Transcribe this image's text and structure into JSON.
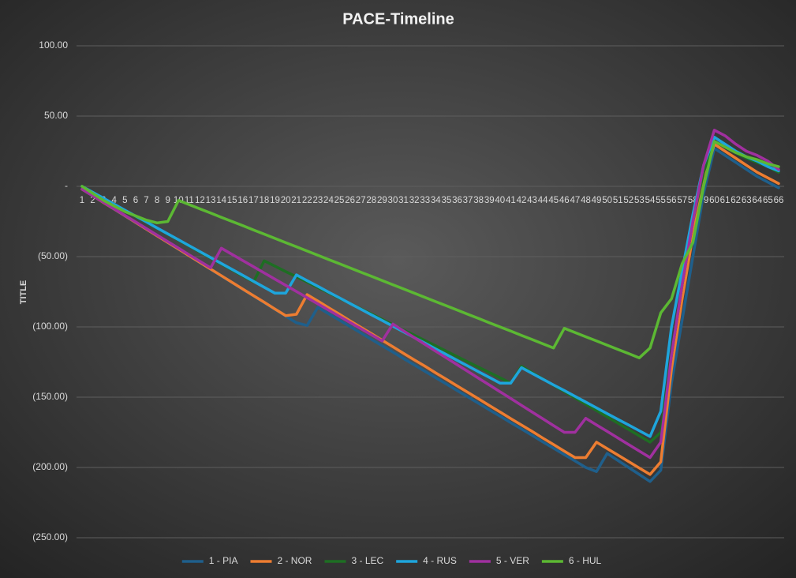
{
  "chart_data": {
    "type": "line",
    "title": "PACE-Timeline",
    "y_label": "TITLE",
    "categories": [
      "1",
      "2",
      "3",
      "4",
      "5",
      "6",
      "7",
      "8",
      "9",
      "10",
      "11",
      "12",
      "13",
      "14",
      "15",
      "16",
      "17",
      "18",
      "19",
      "20",
      "21",
      "22",
      "23",
      "24",
      "25",
      "26",
      "27",
      "28",
      "29",
      "30",
      "31",
      "32",
      "33",
      "34",
      "35",
      "36",
      "37",
      "38",
      "39",
      "40",
      "41",
      "42",
      "43",
      "44",
      "45",
      "46",
      "47",
      "48",
      "49",
      "50",
      "51",
      "52",
      "53",
      "54",
      "55",
      "56",
      "57",
      "58",
      "59",
      "60",
      "61",
      "62",
      "63",
      "64",
      "65",
      "66"
    ],
    "ylim": [
      -250,
      100
    ],
    "yticks": [
      {
        "value": 100,
        "label": "100.00"
      },
      {
        "value": 50,
        "label": "50.00"
      },
      {
        "value": 0,
        "label": "-"
      },
      {
        "value": -50,
        "label": "(50.00)"
      },
      {
        "value": -100,
        "label": "(100.00)"
      },
      {
        "value": -150,
        "label": "(150.00)"
      },
      {
        "value": -200,
        "label": "(200.00)"
      },
      {
        "value": -250,
        "label": "(250.00)"
      }
    ],
    "grid": true,
    "legend": "bottom",
    "series": [
      {
        "name": "1 - PIA",
        "color": "#1f5f8b",
        "values": [
          -2,
          -6.8,
          -11.5,
          -16.3,
          -21,
          -25.8,
          -30.5,
          -35.3,
          -40,
          -44.8,
          -49.5,
          -54.3,
          -59,
          -63.8,
          -68.5,
          -73.3,
          -78,
          -82.8,
          -87.5,
          -92.3,
          -97,
          -99,
          -86,
          -90.6,
          -95.1,
          -99.7,
          -104.2,
          -108.8,
          -113.4,
          -117.9,
          -122.5,
          -127,
          -131.6,
          -136.2,
          -140.7,
          -145.3,
          -149.8,
          -154.4,
          -159,
          -163.5,
          -168.1,
          -172.6,
          -177.2,
          -181.8,
          -186.3,
          -190.9,
          -195.4,
          -200,
          -203,
          -190,
          -195,
          -200,
          -205,
          -210,
          -202,
          -140,
          -95,
          -50,
          -5,
          27,
          22,
          17,
          12,
          7,
          3,
          -1
        ]
      },
      {
        "name": "2 - NOR",
        "color": "#ed7d31",
        "values": [
          -2,
          -6.7,
          -11.5,
          -16.2,
          -20.9,
          -25.7,
          -30.4,
          -35.2,
          -39.9,
          -44.6,
          -49.4,
          -54.1,
          -58.8,
          -63.6,
          -68.3,
          -73.1,
          -77.8,
          -82.5,
          -87.3,
          -92,
          -91,
          -77,
          -81.6,
          -86.3,
          -90.9,
          -95.6,
          -100.2,
          -104.8,
          -109.5,
          -114.1,
          -118.8,
          -123.4,
          -128,
          -132.7,
          -137.3,
          -142,
          -146.6,
          -151.2,
          -155.9,
          -160.5,
          -165.2,
          -169.8,
          -174.4,
          -179.1,
          -183.7,
          -188.4,
          -193,
          -193,
          -182,
          -186.6,
          -191.2,
          -195.8,
          -200.4,
          -205,
          -196,
          -130,
          -80,
          -35,
          5,
          30,
          25,
          20,
          15,
          10,
          6,
          2
        ]
      },
      {
        "name": "3 - LEC",
        "color": "#1e6e23",
        "values": [
          0,
          -4.3,
          -8.5,
          -12.8,
          -17,
          -21.3,
          -25.5,
          -29.8,
          -34,
          -38.3,
          -42.5,
          -46.8,
          -51,
          -55.3,
          -59.5,
          -63.8,
          -68,
          -53,
          -56.8,
          -60.6,
          -64.3,
          -68.1,
          -71.9,
          -75.7,
          -79.5,
          -83.3,
          -87,
          -90.8,
          -94.6,
          -98.4,
          -102.2,
          -105.9,
          -109.7,
          -113.5,
          -117.3,
          -121.1,
          -124.9,
          -128.7,
          -132.4,
          -136.2,
          -140,
          -128,
          -132.5,
          -137,
          -141.5,
          -146,
          -150.5,
          -155,
          -159.5,
          -164,
          -168.5,
          -173,
          -177.5,
          -182,
          -175,
          -120,
          -70,
          -25,
          10,
          32,
          28,
          24,
          20,
          17,
          14,
          10
        ]
      },
      {
        "name": "4 - RUS",
        "color": "#1ea5dc",
        "values": [
          0,
          -4.2,
          -8.4,
          -12.7,
          -16.9,
          -21.1,
          -25.3,
          -29.6,
          -33.8,
          -38,
          -42.2,
          -46.4,
          -50.7,
          -54.9,
          -59.1,
          -63.3,
          -67.6,
          -71.8,
          -76,
          -76,
          -63,
          -67.1,
          -71.1,
          -75.2,
          -79.2,
          -83.3,
          -87.3,
          -91.4,
          -95.4,
          -99.5,
          -103.5,
          -107.6,
          -111.6,
          -115.7,
          -119.7,
          -123.8,
          -127.8,
          -131.9,
          -135.9,
          -140,
          -140,
          -129,
          -133.1,
          -137.2,
          -141.3,
          -145.3,
          -149.4,
          -153.5,
          -157.6,
          -161.7,
          -165.8,
          -169.8,
          -173.9,
          -178,
          -160,
          -100,
          -60,
          -20,
          15,
          35,
          30,
          25,
          21,
          18,
          14,
          11
        ]
      },
      {
        "name": "5 - VER",
        "color": "#a0309f",
        "values": [
          -2,
          -6.7,
          -11.3,
          -16,
          -20.7,
          -25.3,
          -30,
          -34.7,
          -39.3,
          -44,
          -48.7,
          -53.3,
          -58,
          -44,
          -48.4,
          -52.8,
          -57.2,
          -61.6,
          -66,
          -70.4,
          -74.8,
          -79.2,
          -83.6,
          -88,
          -92.4,
          -96.8,
          -101.2,
          -105.6,
          -110,
          -98,
          -102.8,
          -107.6,
          -112.4,
          -117.3,
          -122.1,
          -126.9,
          -131.7,
          -136.5,
          -141.3,
          -146.1,
          -150.9,
          -155.8,
          -160.6,
          -165.4,
          -170.2,
          -175,
          -175,
          -165,
          -169.7,
          -174.3,
          -179,
          -183.7,
          -188.3,
          -193,
          -182,
          -120,
          -70,
          -25,
          15,
          40,
          36,
          30,
          25,
          22,
          18,
          12
        ]
      },
      {
        "name": "6 - HUL",
        "color": "#5cb833",
        "values": [
          0,
          -5,
          -10,
          -14,
          -18,
          -21,
          -24,
          -26,
          -25,
          -10,
          -13,
          -16,
          -19,
          -22,
          -25,
          -28,
          -31,
          -34,
          -37,
          -40,
          -43,
          -46,
          -49,
          -52,
          -55,
          -58,
          -61,
          -64,
          -67,
          -70,
          -73,
          -76,
          -79,
          -82,
          -85,
          -88,
          -91,
          -94,
          -97,
          -100,
          -103,
          -106,
          -109,
          -112,
          -115,
          -101,
          -104,
          -107,
          -110,
          -113,
          -116,
          -119,
          -122,
          -115,
          -90,
          -80,
          -55,
          -40,
          0,
          32,
          28,
          24,
          21,
          19,
          16,
          14
        ]
      }
    ]
  }
}
